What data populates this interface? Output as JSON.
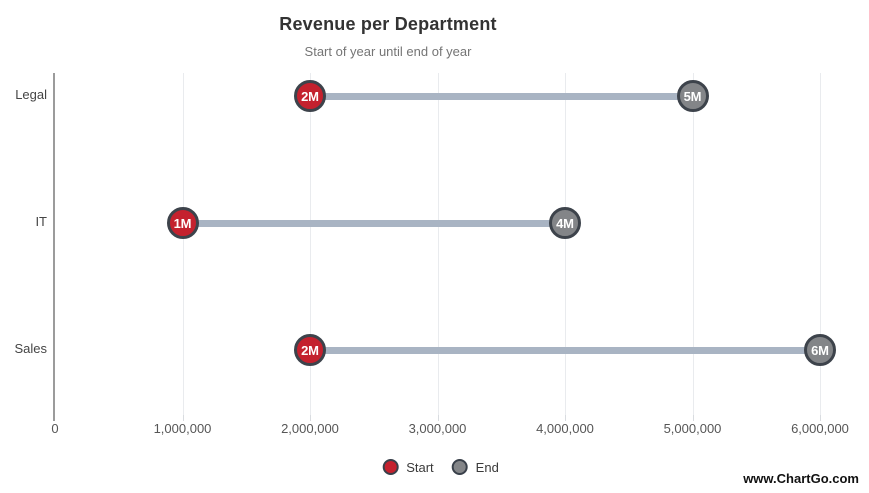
{
  "title": "Revenue per Department",
  "subtitle": "Start of year until end of year",
  "watermark": "www.ChartGo.com",
  "legend": {
    "items": [
      {
        "label": "Start",
        "color": "#c4212e"
      },
      {
        "label": "End",
        "color": "#838588"
      }
    ]
  },
  "colors": {
    "start_fill": "#c4212e",
    "end_fill": "#838588",
    "marker_border": "#3d434b",
    "connector": "#a9b4c3",
    "gridline": "#e9ebee",
    "axis": "#9b9b9b"
  },
  "chart_data": {
    "type": "dumbbell",
    "title": "Revenue per Department",
    "subtitle": "Start of year until end of year",
    "categories": [
      "Legal",
      "IT",
      "Sales"
    ],
    "series": [
      {
        "name": "Start",
        "values": [
          2000000,
          1000000,
          2000000
        ]
      },
      {
        "name": "End",
        "values": [
          5000000,
          4000000,
          6000000
        ]
      }
    ],
    "marker_labels": {
      "start": [
        "2M",
        "1M",
        "2M"
      ],
      "end": [
        "5M",
        "4M",
        "6M"
      ]
    },
    "xlim": [
      0,
      6000000
    ],
    "x_ticks": [
      "0",
      "1,000,000",
      "2,000,000",
      "3,000,000",
      "4,000,000",
      "5,000,000",
      "6,000,000"
    ],
    "grid": "vertical-only",
    "legend_position": "bottom-center"
  }
}
